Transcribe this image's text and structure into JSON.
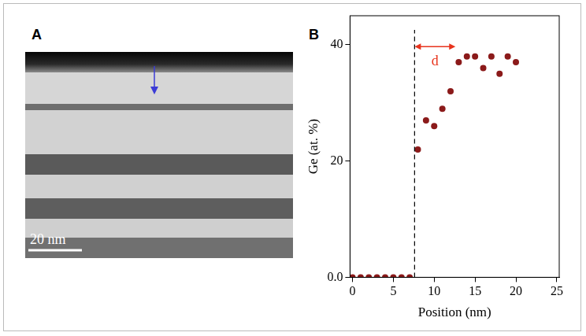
{
  "image_panel": {
    "label": "A",
    "scale_bar_label": "20 nm"
  },
  "chart_data": {
    "panel": "B",
    "type": "scatter",
    "x": [
      0,
      1,
      2,
      3,
      4,
      5,
      6,
      7,
      8,
      9,
      10,
      11,
      12,
      13,
      14,
      15,
      16,
      17,
      18,
      19,
      20
    ],
    "values": [
      0,
      0,
      0,
      0,
      0,
      0,
      0,
      0,
      22,
      27,
      26,
      29,
      32,
      37,
      38,
      38,
      36,
      38,
      35,
      38,
      37
    ],
    "color": "#8b1a1a",
    "marker": "circle",
    "x_label": "Position (nm)",
    "y_label": "Ge (at. %)",
    "xlim": [
      -0.3,
      25.3
    ],
    "xticks": [
      0,
      5,
      10,
      15,
      20,
      25
    ],
    "ylim": [
      0,
      45
    ],
    "yticks": [
      {
        "value": 0,
        "label": "0.0"
      },
      20,
      40
    ],
    "grid": false,
    "annotations": [
      {
        "type": "vline",
        "x": 7.6,
        "line_style": "dashed",
        "color": "#000000"
      },
      {
        "type": "arrow",
        "x": [
          7.6,
          12.6
        ],
        "y": 39.7,
        "text": "d",
        "color": "#e8331c"
      }
    ]
  }
}
